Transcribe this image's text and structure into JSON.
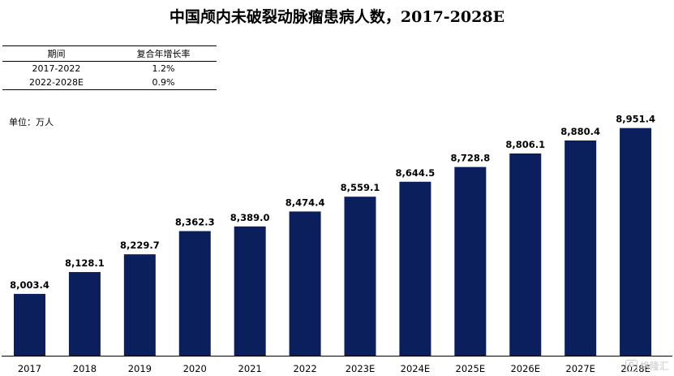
{
  "chart_data": {
    "type": "bar",
    "title": "中国颅内未破裂动脉瘤患病人数，2017-2028E",
    "unit_label": "单位：万人",
    "categories": [
      "2017",
      "2018",
      "2019",
      "2020",
      "2021",
      "2022",
      "2023E",
      "2024E",
      "2025E",
      "2026E",
      "2027E",
      "2028E"
    ],
    "values": [
      8003.4,
      8128.1,
      8229.7,
      8362.3,
      8389.0,
      8474.4,
      8559.1,
      8644.5,
      8728.8,
      8806.1,
      8880.4,
      8951.4
    ],
    "value_labels": [
      "8,003.4",
      "8,128.1",
      "8,229.7",
      "8,362.3",
      "8,389.0",
      "8,474.4",
      "8,559.1",
      "8,644.5",
      "8,728.8",
      "8,806.1",
      "8,880.4",
      "8,951.4"
    ],
    "ylim": [
      7650,
      9080
    ],
    "xlabel": "",
    "ylabel": "",
    "bar_color": "#0b1f5c"
  },
  "cagr_table": {
    "headers": [
      "期间",
      "复合年增长率"
    ],
    "rows": [
      [
        "2017-2022",
        "1.2%"
      ],
      [
        "2022-2028E",
        "0.9%"
      ]
    ]
  },
  "watermark": "格隆汇",
  "watermark_icon": "G-logo-icon"
}
